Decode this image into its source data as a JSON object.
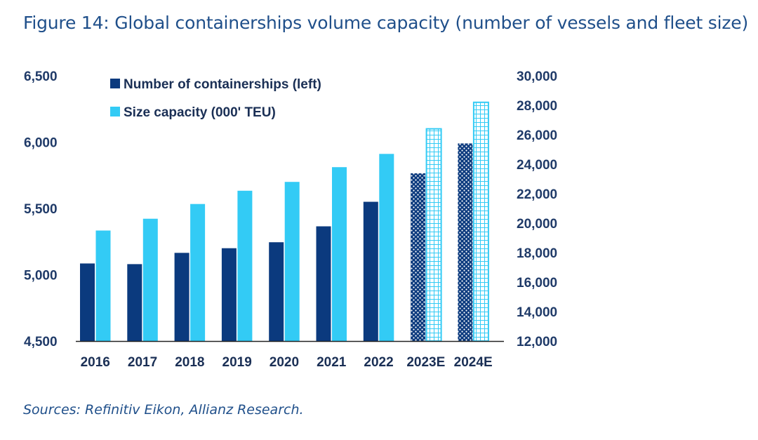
{
  "title": "Figure 14: Global containerships volume capacity (number of vessels and fleet size)",
  "source": "Sources: Refinitiv Eikon, Allianz Research.",
  "colors": {
    "vessels": "#0b3a7e",
    "capacity": "#33cbf5",
    "axis": "#222222"
  },
  "chart_data": {
    "type": "bar",
    "categories": [
      "2016",
      "2017",
      "2018",
      "2019",
      "2020",
      "2021",
      "2022",
      "2023E",
      "2024E"
    ],
    "estimated_categories": [
      "2023E",
      "2024E"
    ],
    "series": [
      {
        "name": "Number of containerships (left)",
        "axis": "left",
        "values": [
          5085,
          5080,
          5165,
          5200,
          5245,
          5365,
          5550,
          5765,
          5990
        ]
      },
      {
        "name": "Size capacity (000' TEU)",
        "axis": "right",
        "values": [
          19500,
          20300,
          21300,
          22200,
          22800,
          23800,
          24700,
          26400,
          28200
        ]
      }
    ],
    "y_left": {
      "range": [
        4500,
        6500
      ],
      "ticks": [
        "4,500",
        "5,000",
        "5,500",
        "6,000",
        "6,500"
      ]
    },
    "y_right": {
      "range": [
        12000,
        30000
      ],
      "ticks": [
        "12,000",
        "14,000",
        "16,000",
        "18,000",
        "20,000",
        "22,000",
        "24,000",
        "26,000",
        "28,000",
        "30,000"
      ]
    },
    "legend_position": "top-left",
    "grid": false
  }
}
